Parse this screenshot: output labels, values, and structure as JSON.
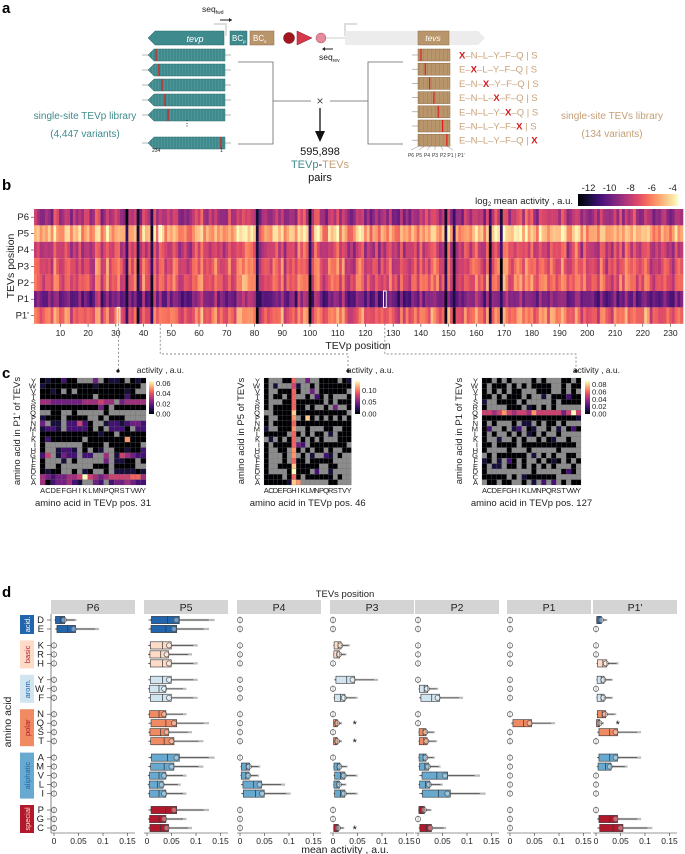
{
  "panel_labels": {
    "a": "a",
    "b": "b",
    "c": "c",
    "d": "d"
  },
  "panel_a": {
    "seq_fwd": "seq",
    "seq_fwd_sub": "fwd",
    "seq_rev": "seq",
    "seq_rev_sub": "rev",
    "tevp_label": "tevp",
    "bcp": "BC",
    "bcp_sub": "p",
    "bcs": "BC",
    "bcs_sub": "s",
    "tevs_label": "tevs",
    "left_library_title": "single-site TEVp library",
    "left_library_count": "(4,447 variants)",
    "right_library_title": "single-site TEVs library",
    "right_library_count": "(134 variants)",
    "tevp_end_left": "234",
    "tevp_end_right": "1",
    "dots": "⋮",
    "cross": "×",
    "pairs_count": "595,898",
    "pairs_tevp": "TEVp",
    "pairs_dash": "-",
    "pairs_tevs": "TEVs",
    "pairs_word": "pairs",
    "sequences": [
      "X–N–L–Y–F–Q | S",
      "E–X–L–Y–F–Q | S",
      "E–N–X–Y–F–Q | S",
      "E–N–L–X–F–Q | S",
      "E–N–L–Y–X–Q | S",
      "E–N–L–Y–F–X | S",
      "E–N–L–Y–F–Q | X"
    ],
    "site_labels": [
      "P6",
      "P5",
      "P4",
      "P3",
      "P2",
      "P1 | P1'"
    ],
    "colors": {
      "teal": "#3f8a8c",
      "tan": "#b9956b",
      "mutation": "#d7191c"
    }
  },
  "chart_data": [
    {
      "id": "b",
      "type": "heatmap",
      "xlabel": "TEVp position",
      "ylabel": "TEVs position",
      "rows": [
        "P6",
        "P5",
        "P4",
        "P3",
        "P2",
        "P1",
        "P1'"
      ],
      "x_range": [
        1,
        234
      ],
      "x_ticks": [
        10,
        20,
        30,
        40,
        50,
        60,
        70,
        80,
        90,
        100,
        110,
        120,
        130,
        140,
        150,
        160,
        170,
        180,
        190,
        200,
        210,
        220,
        230
      ],
      "colorbar_label_prefix": "log",
      "colorbar_label_sub": "2",
      "colorbar_label_suffix": " mean activity , a.u.",
      "colorbar_ticks": [
        -12,
        -10,
        -8,
        -6,
        -4
      ],
      "color_range": [
        -13,
        -3.5
      ],
      "row_mean_log2": [
        -8.2,
        -5.0,
        -7.6,
        -6.9,
        -6.7,
        -9.6,
        -6.4
      ],
      "dark_positions": [
        34,
        38,
        43,
        81,
        100,
        149,
        152,
        165,
        169
      ],
      "highlighted": [
        {
          "position": 31,
          "row": "P1'"
        },
        {
          "position": 46,
          "row": "P5"
        },
        {
          "position": 127,
          "row": "P1"
        }
      ]
    },
    {
      "id": "c1",
      "type": "heatmap",
      "xlabel": "amino acid in TEVp pos. 31",
      "ylabel": "amino acid in P1' of TEVs",
      "x_categories": [
        "A",
        "C",
        "D",
        "E",
        "F",
        "G",
        "H",
        "I",
        "K",
        "L",
        "M",
        "N",
        "P",
        "Q",
        "R",
        "S",
        "T",
        "V",
        "W",
        "Y"
      ],
      "y_categories": [
        "Y",
        "W",
        "V",
        "T",
        "S",
        "R",
        "Q",
        "P",
        "N",
        "M",
        "L",
        "K",
        "I",
        "H",
        "G",
        "F",
        "E",
        "D",
        "C",
        "A"
      ],
      "colorbar_label": "activity , a.u.",
      "colorbar_ticks": [
        "0.06",
        "0.04",
        "0.02",
        "0.00"
      ],
      "color_max": 0.065,
      "rows": [
        "0100200...3.0110.010",
        "1000000000100000000.",
        "0010.0.00000000010..",
        "0000000000.000002000",
        "44333333444544.34444",
        "0000000000030.000000",
        "..00..0.....0.......",
        "1000.0000..0.000....",
        "3.11.22520..12212332",
        "1221.22220.0.2220.22",
        "00000000000100.00000",
        "02000000.00000007000",
        "0.......0000.000000.",
        "0..1221.0.01..001002",
        "25.1322.22..4.154322",
        "0...1.0.....3.1100.0",
        "0..0......000.0000..",
        "0100..0.10..0.111101",
        "43233445954345555664",
        "40233421..32.2334322"
      ]
    },
    {
      "id": "c2",
      "type": "heatmap",
      "xlabel": "amino acid in TEVp pos. 46",
      "ylabel": "amino acid in P5 of TEVs",
      "x_categories": [
        "A",
        "C",
        "D",
        "E",
        "F",
        "G",
        "H",
        "I",
        "K",
        "L",
        "M",
        "N",
        "P",
        "Q",
        "R",
        "S",
        "T",
        "V",
        "Y"
      ],
      "y_categories": [
        "Y",
        "W",
        "V",
        "T",
        "S",
        "R",
        "Q",
        "P",
        "N",
        "M",
        "L",
        "K",
        "I",
        "H",
        "G",
        "F",
        "E",
        "D",
        "C",
        "A"
      ],
      "colorbar_label": "activity , a.u.",
      "colorbar_ticks": [
        "0.10",
        "0.05",
        "0.00"
      ],
      "color_max": 0.14,
      "rows": [
        "0...006..3..0000.01",
        "0.1...51..0.0000000",
        "0..00060..3.000000.",
        "0.00.06..0.20.0...0",
        "0...006000000.0.000",
        "0.0000600.0..0.3..0",
        "..0000800000000000.",
        "0..0007.080.0.0.0.0",
        "0.00006000000000000",
        "1..0007..0...00..00",
        "00000.60.0.00.1.000",
        ".1.0.06.0.0.0...000",
        "0.0000632.00000000.",
        "0..00.70.0.00.0..00",
        "0...0.7.0.1..21.0..",
        "0...0.600.00000....",
        "0..000800000..00...",
        "0....09000.2..1....",
        "0000.060.000000.0..",
        "00000187......00..."
      ]
    },
    {
      "id": "c3",
      "type": "heatmap",
      "xlabel": "amino acid in TEVp pos. 127",
      "ylabel": "amino acid in P1 of TEVs",
      "x_categories": [
        "A",
        "C",
        "D",
        "E",
        "F",
        "G",
        "H",
        "I",
        "K",
        "L",
        "M",
        "N",
        "P",
        "Q",
        "R",
        "S",
        "T",
        "V",
        "W",
        "Y"
      ],
      "y_categories": [
        "Y",
        "W",
        "V",
        "T",
        "S",
        "R",
        "Q",
        "P",
        "N",
        "M",
        "L",
        "K",
        "I",
        "H",
        "G",
        "F",
        "E",
        "D",
        "C",
        "A"
      ],
      "colorbar_label": "activity , a.u.",
      "colorbar_ticks": [
        "0.08",
        "0.06",
        "0.04",
        "0.02",
        "0.00"
      ],
      "color_max": 0.09,
      "rows": [
        "00.0.0....0.0...00.0",
        "0.000.0.0.0000..0.00",
        "0.0.0.00...000..0.0.",
        "00.0.000.0..1.000200",
        "1..0000.0.....0.0000",
        "0....000.10.0.0.....",
        "55457545547555553595",
        "00000000000000000001",
        "0.0...0.11.0.00.0...",
        "02..0.12.01..0.1.020",
        "0.0..0.0.10.0..0....",
        "0..1..0.0..0.01..0..",
        "00.0000.00000000000.",
        "0....0...0.....0....",
        ".0.000000.1.0.0..00.",
        "10.1.20.0..0.010.0.0",
        "0.11.00.0.0.0.0...0.",
        "0.........0.....020.",
        "00000.0.1000000.....",
        ".00.00..0.1.2.2.0.00"
      ]
    },
    {
      "id": "d",
      "type": "box",
      "title": "TEVs position",
      "xlabel": "mean activity , a.u.",
      "ylabel": "amino acid",
      "facets": [
        "P6",
        "P5",
        "P4",
        "P3",
        "P2",
        "P1",
        "P1'"
      ],
      "x_ticks": [
        "0",
        "0.05",
        "0.1",
        "0.15"
      ],
      "xlim": [
        0,
        0.16
      ],
      "groups": [
        {
          "name": "acid.",
          "color": "#2166ac",
          "text_color": "#ffffff",
          "residues": [
            "D",
            "E"
          ]
        },
        {
          "name": "basic",
          "color": "#fddbc7",
          "text_color": "#b2182b",
          "residues": [
            "K",
            "R",
            "H"
          ]
        },
        {
          "name": "arom.",
          "color": "#d1e5f0",
          "text_color": "#2166ac",
          "residues": [
            "Y",
            "W",
            "F"
          ]
        },
        {
          "name": "polar",
          "color": "#ef8a62",
          "text_color": "#b2182b",
          "residues": [
            "N",
            "Q",
            "S",
            "T"
          ]
        },
        {
          "name": "aliphatic",
          "color": "#67a9cf",
          "text_color": "#2166ac",
          "residues": [
            "A",
            "M",
            "V",
            "L",
            "I"
          ]
        },
        {
          "name": "special",
          "color": "#b2182b",
          "text_color": "#fddbc7",
          "residues": [
            "P",
            "G",
            "C"
          ]
        }
      ],
      "means": {
        "P6": [
          0.02,
          0.04,
          0,
          0,
          0,
          0,
          0,
          0,
          0,
          0,
          0,
          0,
          0,
          0,
          0,
          0,
          0,
          0,
          0,
          0
        ],
        "P5": [
          0.06,
          0.055,
          0.045,
          0.04,
          0.045,
          0.045,
          0.035,
          0.045,
          0.035,
          0.055,
          0.04,
          0.05,
          0.06,
          0.05,
          0.035,
          0.03,
          0.035,
          0.055,
          0.035,
          0.04
        ],
        "P4": [
          0,
          0,
          0,
          0,
          0,
          0,
          0,
          0,
          0,
          0,
          0,
          0,
          0,
          0.018,
          0.017,
          0.04,
          0.045,
          0,
          0,
          0
        ],
        "P3": [
          0,
          0,
          0.015,
          0.012,
          0,
          0.04,
          0,
          0.022,
          0,
          0.008,
          0,
          0.008,
          0,
          0.013,
          0.022,
          0.012,
          0.022,
          0,
          0,
          0.01
        ],
        "P2": [
          0,
          0,
          0,
          0,
          0,
          0,
          0.018,
          0.04,
          0,
          0,
          0.015,
          0.017,
          0.015,
          0.02,
          0.055,
          0.022,
          0.06,
          0.012,
          0,
          0.025
        ],
        "P1": [
          0,
          0,
          0,
          0,
          0,
          0,
          0,
          0,
          0,
          0.04,
          0,
          0,
          0,
          0,
          0,
          0,
          0,
          0,
          0,
          0
        ],
        "P1'": [
          0.01,
          0,
          0,
          0,
          0.02,
          0.015,
          0,
          0.015,
          0.018,
          0.007,
          0.04,
          0,
          0.04,
          0.028,
          0,
          0,
          0,
          0,
          0.04,
          0.05
        ]
      },
      "significance_mark": "*",
      "significant": [
        {
          "facet": "P3",
          "residue": "Q"
        },
        {
          "facet": "P3",
          "residue": "T"
        },
        {
          "facet": "P3",
          "residue": "C"
        },
        {
          "facet": "P1'",
          "residue": "Q"
        }
      ]
    }
  ]
}
